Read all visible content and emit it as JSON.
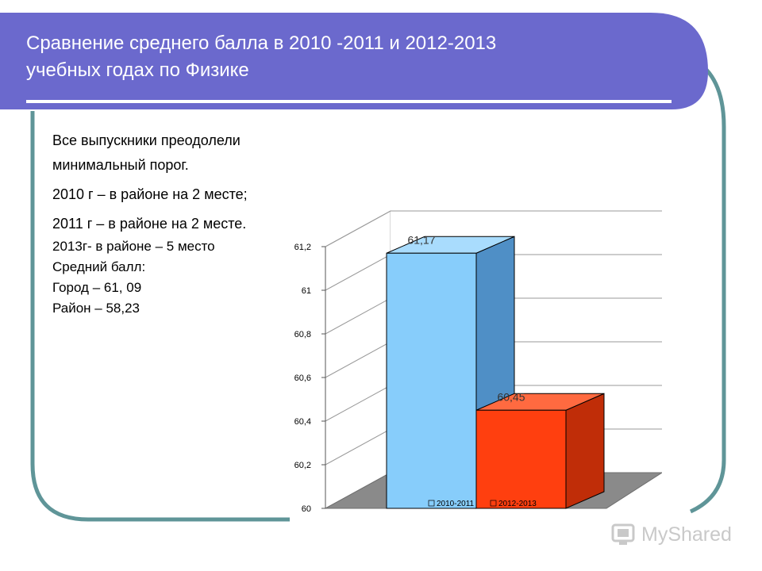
{
  "slide": {
    "title_line1": "Сравнение среднего балла в 2010 -2011 и 2012-2013",
    "title_line2": "учебных годах по Физике",
    "notes": [
      "Все выпускники преодолели минимальный порог.",
      "2010 г – в районе на 2 месте;",
      "2011 г – в районе на 2 месте."
    ],
    "notes_small": [
      "2013г- в районе – 5 место",
      "Средний балл:",
      "Город – 61, 09",
      "Район – 58,23"
    ],
    "logo_text": "MyShared"
  },
  "colors": {
    "header_blue": "#6b69cd",
    "frame_teal": "#5f9598",
    "bar1": "#87cdfb",
    "bar2": "#ff3f0f"
  },
  "chart_data": {
    "type": "bar",
    "categories": [
      ""
    ],
    "series": [
      {
        "name": "2010-2011",
        "values": [
          61.17
        ],
        "label": "61,17"
      },
      {
        "name": "2012-2013",
        "values": [
          60.45
        ],
        "label": "60,45"
      }
    ],
    "title": "",
    "xlabel": "",
    "ylabel": "",
    "ylim": [
      60,
      61.2
    ],
    "yticks": [
      60,
      60.2,
      60.4,
      60.6,
      60.8,
      61,
      61.2
    ],
    "ytick_labels": [
      "60",
      "60,2",
      "60,4",
      "60,6",
      "60,8",
      "61",
      "61,2"
    ],
    "grid": true,
    "legend": "bottom",
    "style": "3d"
  }
}
